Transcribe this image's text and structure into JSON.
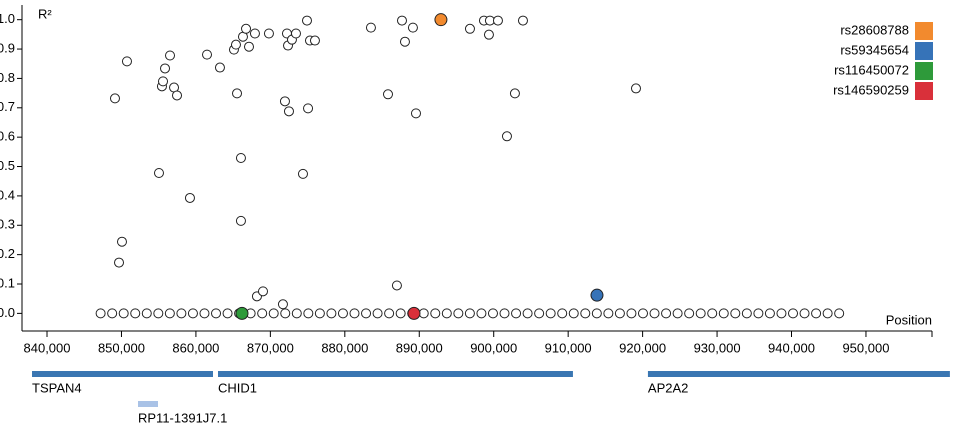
{
  "chart_data": {
    "type": "scatter",
    "x_label": "Position",
    "y_label": "R²",
    "xlim": [
      836640,
      958870
    ],
    "ylim": [
      -0.06,
      1.05
    ],
    "xticks": [
      {
        "value": 840000,
        "label": "840,000"
      },
      {
        "value": 850000,
        "label": "850,000"
      },
      {
        "value": 860000,
        "label": "860,000"
      },
      {
        "value": 870000,
        "label": "870,000"
      },
      {
        "value": 880000,
        "label": "880,000"
      },
      {
        "value": 890000,
        "label": "890,000"
      },
      {
        "value": 900000,
        "label": "900,000"
      },
      {
        "value": 910000,
        "label": "910,000"
      },
      {
        "value": 920000,
        "label": "920,000"
      },
      {
        "value": 930000,
        "label": "930,000"
      },
      {
        "value": 940000,
        "label": "940,000"
      },
      {
        "value": 950000,
        "label": "950,000"
      }
    ],
    "yticks": [
      {
        "value": 0,
        "label": "0.0"
      },
      0.1,
      0.2,
      0.3,
      0.4,
      0.5,
      0.6,
      0.7,
      0.8,
      0.9,
      {
        "value": 1,
        "label": "1.0"
      }
    ],
    "legend": "top-right",
    "series": [
      {
        "color": "#ffffff",
        "x": [
          849130,
          849670,
          850070,
          850740,
          855040,
          855440,
          855580,
          855850,
          856520,
          857060,
          857460,
          859200,
          861490,
          863230,
          865110,
          865380,
          865520,
          866050,
          866050,
          866320,
          866730,
          867130,
          867930,
          869810,
          868200,
          869010,
          871690,
          871960,
          872230,
          872370,
          872500,
          872900,
          873440,
          874380,
          874920,
          875060,
          875320,
          875990,
          883510,
          885800,
          887000,
          887680,
          888080,
          889150,
          889560,
          896810,
          898690,
          899490,
          899360,
          900570,
          901780,
          902850,
          903930,
          919110
        ],
        "values": [
          0.732,
          0.173,
          0.244,
          0.858,
          0.478,
          0.773,
          0.79,
          0.834,
          0.878,
          0.769,
          0.742,
          0.393,
          0.881,
          0.837,
          0.898,
          0.915,
          0.749,
          0.529,
          0.315,
          0.942,
          0.969,
          0.908,
          0.953,
          0.953,
          0.058,
          0.075,
          0.031,
          0.722,
          0.953,
          0.912,
          0.688,
          0.932,
          0.953,
          0.475,
          0.997,
          0.698,
          0.929,
          0.929,
          0.973,
          0.746,
          0.095,
          0.997,
          0.925,
          0.973,
          0.681,
          0.969,
          0.997,
          0.997,
          0.949,
          0.997,
          0.603,
          0.749,
          0.997,
          0.766
        ]
      },
      {
        "color": "#ffffff",
        "x": [
          847200,
          848750,
          850300,
          851850,
          853400,
          854950,
          856500,
          858050,
          859600,
          861150,
          862700,
          864250,
          865800,
          867350,
          868900,
          870450,
          872000,
          873550,
          875100,
          876650,
          878200,
          879750,
          881300,
          882850,
          884400,
          885950,
          887500,
          889050,
          890600,
          892150,
          893700,
          895250,
          896800,
          898350,
          899900,
          901450,
          903000,
          904550,
          906100,
          907650,
          909200,
          910750,
          912300,
          913850,
          915400,
          916950,
          918500,
          920050,
          921600,
          923150,
          924700,
          926250,
          927800,
          929350,
          930900,
          932450,
          934000,
          935550,
          937100,
          938650,
          940200,
          941750,
          943300,
          944850,
          946400
        ],
        "values": [
          0,
          0,
          0,
          0,
          0,
          0,
          0,
          0,
          0,
          0,
          0,
          0,
          0,
          0,
          0,
          0,
          0,
          0,
          0,
          0,
          0,
          0,
          0,
          0,
          0,
          0,
          0,
          0,
          0,
          0,
          0,
          0,
          0,
          0,
          0,
          0,
          0,
          0,
          0,
          0,
          0,
          0,
          0,
          0,
          0,
          0,
          0,
          0,
          0,
          0,
          0,
          0,
          0,
          0,
          0,
          0,
          0,
          0,
          0,
          0,
          0,
          0,
          0,
          0,
          0
        ]
      },
      {
        "name": "rs28608788",
        "color": "#f28a2e",
        "x": [
          892910
        ],
        "values": [
          1.0
        ]
      },
      {
        "name": "rs59345654",
        "color": "#3673b8",
        "x": [
          913870
        ],
        "values": [
          0.062
        ]
      },
      {
        "name": "rs116450072",
        "color": "#2e9a3a",
        "x": [
          866190
        ],
        "values": [
          0
        ]
      },
      {
        "name": "rs146590259",
        "color": "#d9303a",
        "x": [
          889290
        ],
        "values": [
          0
        ]
      }
    ],
    "genes": [
      {
        "name": "TSPAN4",
        "start": 837985,
        "end": 862294,
        "color": "#3a76b2"
      },
      {
        "name": "CHID1",
        "start": 862966,
        "end": 910642,
        "color": "#3a76b2"
      },
      {
        "name": "AP2A2",
        "start": 920714,
        "end": 961273,
        "color": "#3a76b2"
      },
      {
        "name": "RP11-1391J7.1",
        "start": 852221,
        "end": 854907,
        "color": "#a9c2e6"
      }
    ]
  }
}
